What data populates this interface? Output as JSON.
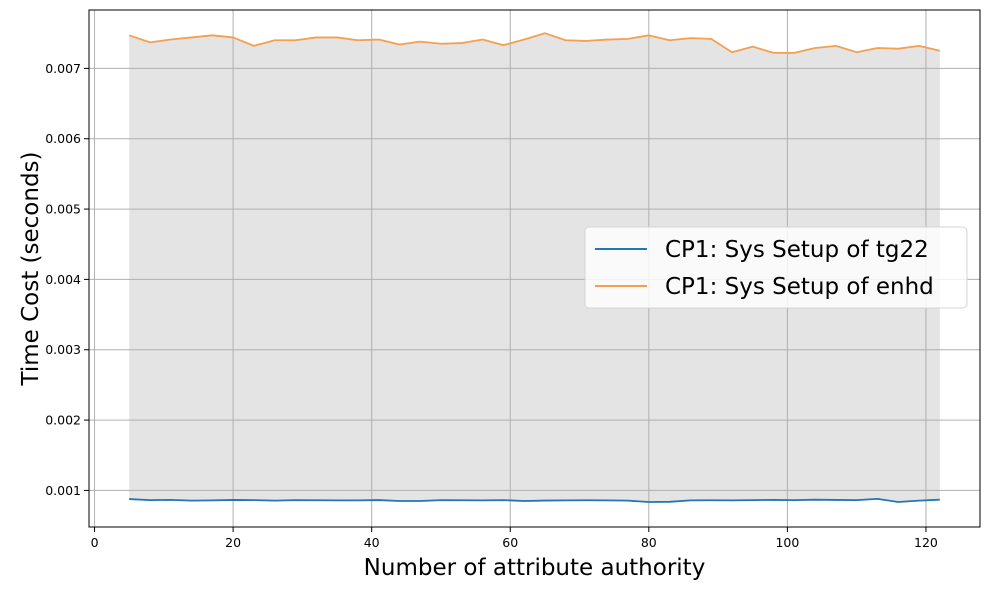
{
  "chart_data": {
    "type": "line",
    "title": "",
    "xlabel": "Number of attribute authority",
    "ylabel": "Time Cost (seconds)",
    "xlim": [
      -0.8,
      127.8
    ],
    "ylim": [
      0.00048,
      0.00783
    ],
    "xticks": [
      0,
      20,
      40,
      60,
      80,
      100,
      120
    ],
    "xtick_labels": [
      "0",
      "20",
      "40",
      "60",
      "80",
      "100",
      "120"
    ],
    "yticks": [
      0.001,
      0.002,
      0.003,
      0.004,
      0.005,
      0.006,
      0.007
    ],
    "ytick_labels": [
      "0.001",
      "0.002",
      "0.003",
      "0.004",
      "0.005",
      "0.006",
      "0.007"
    ],
    "grid": true,
    "legend_position": "center-right",
    "fill_between": {
      "from_series": 0,
      "to_series": 1,
      "color": "#e4e4e4"
    },
    "x": [
      5,
      8,
      11,
      14,
      17,
      20,
      23,
      26,
      29,
      32,
      35,
      38,
      41,
      44,
      47,
      50,
      53,
      56,
      59,
      62,
      65,
      68,
      71,
      74,
      77,
      80,
      83,
      86,
      89,
      92,
      95,
      98,
      101,
      104,
      107,
      110,
      113,
      116,
      119,
      122
    ],
    "series": [
      {
        "name": "CP1: Sys Setup of tg22",
        "color": "#1f77b4",
        "values": [
          0.000877,
          0.000862,
          0.000866,
          0.000855,
          0.000858,
          0.000865,
          0.000862,
          0.000855,
          0.000862,
          0.00086,
          0.000858,
          0.000858,
          0.000863,
          0.00085,
          0.00085,
          0.000862,
          0.00086,
          0.000858,
          0.000862,
          0.00085,
          0.000856,
          0.000858,
          0.00086,
          0.000858,
          0.000855,
          0.000835,
          0.000838,
          0.000858,
          0.00086,
          0.000858,
          0.000862,
          0.000865,
          0.000862,
          0.000868,
          0.000865,
          0.000862,
          0.00088,
          0.000835,
          0.000855,
          0.000868
        ]
      },
      {
        "name": "CP1: Sys Setup of enhd",
        "color": "#f4a04e",
        "values": [
          0.00747,
          0.00737,
          0.00741,
          0.00744,
          0.00747,
          0.00744,
          0.00732,
          0.0074,
          0.0074,
          0.00744,
          0.00744,
          0.0074,
          0.00741,
          0.00734,
          0.00738,
          0.00735,
          0.00736,
          0.00741,
          0.00733,
          0.00741,
          0.0075,
          0.0074,
          0.00739,
          0.00741,
          0.00742,
          0.00747,
          0.0074,
          0.00743,
          0.00742,
          0.00723,
          0.00731,
          0.00722,
          0.00722,
          0.00729,
          0.00732,
          0.00723,
          0.00729,
          0.00728,
          0.00732,
          0.00725
        ]
      }
    ]
  }
}
